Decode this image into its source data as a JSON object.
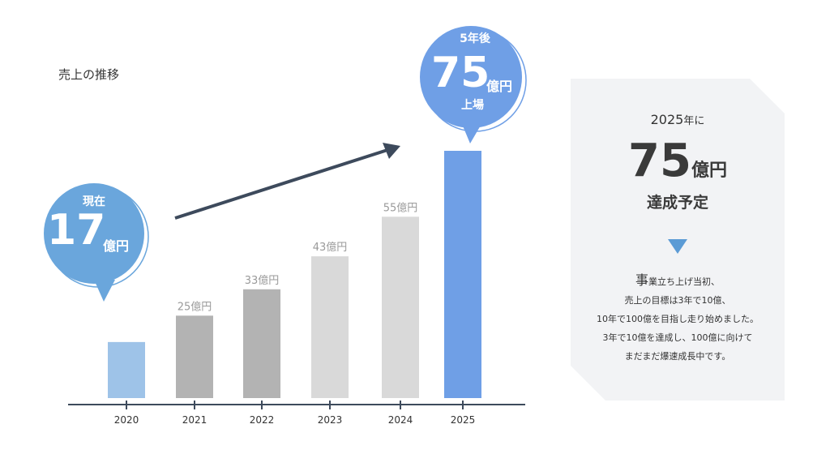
{
  "chart_data": {
    "type": "bar",
    "title": "売上の推移",
    "categories": [
      "2020",
      "2021",
      "2022",
      "2023",
      "2024",
      "2025"
    ],
    "values": [
      17,
      25,
      33,
      43,
      55,
      75
    ],
    "data_labels": [
      "",
      "25億円",
      "33億円",
      "43億円",
      "55億円",
      ""
    ],
    "colors": [
      "#9ec3e8",
      "#b3b3b3",
      "#b3b3b3",
      "#d9d9d9",
      "#d9d9d9",
      "#6f9fe6"
    ],
    "ylim": [
      0,
      80
    ]
  },
  "bubble_now": {
    "label": "現在",
    "value": "17",
    "unit": "億円"
  },
  "bubble_future": {
    "label": "5年後",
    "value": "75",
    "unit": "億円",
    "sub": "上場"
  },
  "panel": {
    "year": "2025",
    "year_suffix": "年に",
    "value": "75",
    "unit": "億円",
    "goal": "達成予定",
    "lead_big": "事",
    "lead_rest": "業立ち上げ当初、",
    "lines": [
      "売上の目標は3年で10億、",
      "10年で100億を目指し走り始めました。",
      "3年で10億を達成し、100億に向けて",
      "まだまだ爆速成長中です。"
    ]
  },
  "colors": {
    "bubble": "#6f9fe6",
    "bubble_left": "#6aa6dc",
    "axis": "#3d4a5c",
    "panel_bg": "#f2f3f5",
    "triangle": "#5b9bd5"
  }
}
